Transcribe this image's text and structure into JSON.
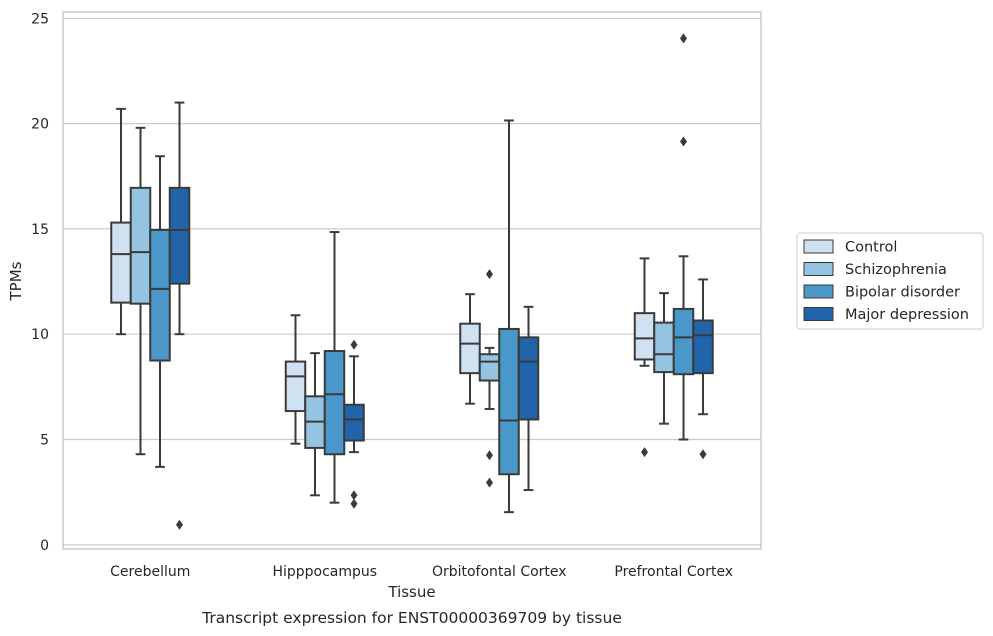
{
  "chart_data": {
    "type": "box",
    "xlabel": "Tissue",
    "ylabel": "TPMs",
    "caption": "Transcript expression for ENST00000369709 by tissue",
    "ylim": [
      -0.2,
      25.3
    ],
    "yticks": [
      0,
      5,
      10,
      15,
      20,
      25
    ],
    "grid": "horizontal",
    "legend_position": "right",
    "categories": [
      "Cerebellum",
      "Hipppocampus",
      "Orbitofontal Cortex",
      "Prefrontal Cortex"
    ],
    "series": [
      {
        "name": "Control",
        "color": "#d0e1f2",
        "boxes": [
          {
            "whislo": 10.0,
            "q1": 11.5,
            "med": 13.8,
            "q3": 15.3,
            "whishi": 20.7,
            "fliers": []
          },
          {
            "whislo": 4.8,
            "q1": 6.35,
            "med": 8.0,
            "q3": 8.7,
            "whishi": 10.9,
            "fliers": []
          },
          {
            "whislo": 6.7,
            "q1": 8.15,
            "med": 9.55,
            "q3": 10.5,
            "whishi": 11.9,
            "fliers": []
          },
          {
            "whislo": 8.5,
            "q1": 8.8,
            "med": 9.8,
            "q3": 11.0,
            "whishi": 13.6,
            "fliers": [
              4.4
            ]
          }
        ]
      },
      {
        "name": "Schizophrenia",
        "color": "#94c4df",
        "boxes": [
          {
            "whislo": 4.3,
            "q1": 11.45,
            "med": 13.9,
            "q3": 16.95,
            "whishi": 19.8,
            "fliers": []
          },
          {
            "whislo": 2.35,
            "q1": 4.6,
            "med": 5.85,
            "q3": 7.05,
            "whishi": 9.1,
            "fliers": []
          },
          {
            "whislo": 6.45,
            "q1": 7.8,
            "med": 8.7,
            "q3": 9.05,
            "whishi": 9.35,
            "fliers": [
              12.85,
              4.25,
              2.95
            ]
          },
          {
            "whislo": 5.75,
            "q1": 8.2,
            "med": 9.05,
            "q3": 10.55,
            "whishi": 11.95,
            "fliers": []
          }
        ]
      },
      {
        "name": "Bipolar disorder",
        "color": "#4a98c9",
        "boxes": [
          {
            "whislo": 3.7,
            "q1": 8.75,
            "med": 12.15,
            "q3": 14.95,
            "whishi": 18.45,
            "fliers": []
          },
          {
            "whislo": 2.0,
            "q1": 4.3,
            "med": 7.15,
            "q3": 9.2,
            "whishi": 14.85,
            "fliers": []
          },
          {
            "whislo": 1.55,
            "q1": 3.35,
            "med": 5.9,
            "q3": 10.25,
            "whishi": 20.15,
            "fliers": []
          },
          {
            "whislo": 5.0,
            "q1": 8.1,
            "med": 9.85,
            "q3": 11.2,
            "whishi": 13.7,
            "fliers": [
              24.05,
              19.15
            ]
          }
        ]
      },
      {
        "name": "Major depression",
        "color": "#2164aa",
        "boxes": [
          {
            "whislo": 10.0,
            "q1": 12.4,
            "med": 14.95,
            "q3": 16.95,
            "whishi": 21.0,
            "fliers": [
              0.95
            ]
          },
          {
            "whislo": 4.4,
            "q1": 4.95,
            "med": 5.95,
            "q3": 6.65,
            "whishi": 8.95,
            "fliers": [
              9.5,
              2.35,
              1.95
            ]
          },
          {
            "whislo": 2.6,
            "q1": 5.95,
            "med": 8.7,
            "q3": 9.85,
            "whishi": 11.3,
            "fliers": []
          },
          {
            "whislo": 6.2,
            "q1": 8.15,
            "med": 9.95,
            "q3": 10.65,
            "whishi": 12.6,
            "fliers": [
              4.3
            ]
          }
        ]
      }
    ]
  }
}
